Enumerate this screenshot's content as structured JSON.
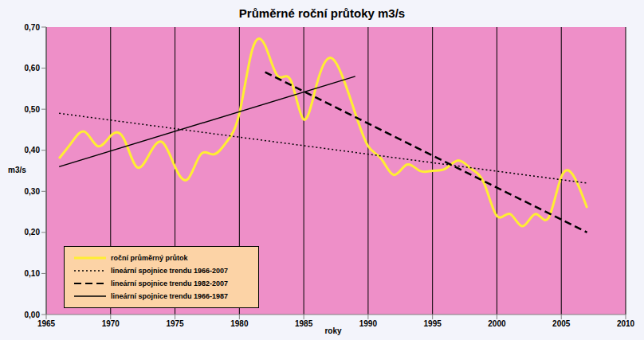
{
  "chart_data": {
    "type": "line",
    "title": "Průměrné roční průtoky m3/s",
    "x_label": "roky",
    "y_label": "m3/s",
    "xlim": [
      1965,
      2010
    ],
    "xticks": [
      1965,
      1970,
      1975,
      1980,
      1985,
      1990,
      1995,
      2000,
      2005,
      2010
    ],
    "ylim": [
      0,
      0.7
    ],
    "yticks": [
      {
        "value": 0,
        "label": "0,00"
      },
      {
        "value": 0.1,
        "label": "0,10"
      },
      {
        "value": 0.2,
        "label": "0,20"
      },
      {
        "value": 0.3,
        "label": "0,30"
      },
      {
        "value": 0.4,
        "label": "0,40"
      },
      {
        "value": 0.5,
        "label": "0,50"
      },
      {
        "value": 0.6,
        "label": "0,60"
      },
      {
        "value": 0.7,
        "label": "0,70"
      }
    ],
    "grid": "x",
    "legend": "lower left",
    "series": [
      {
        "name": "roční průměrný průtok",
        "color": "#ffee33",
        "line_style": "solid",
        "x": [
          1966,
          1967,
          1968,
          1969,
          1970,
          1971,
          1972,
          1973,
          1974,
          1975,
          1976,
          1977,
          1978,
          1979,
          1980,
          1981,
          1982,
          1983,
          1984,
          1985,
          1986,
          1987,
          1988,
          1989,
          1990,
          1991,
          1992,
          1993,
          1994,
          1995,
          1996,
          1997,
          1998,
          1999,
          2000,
          2001,
          2002,
          2003,
          2004,
          2005,
          2006,
          2007
        ],
        "values": [
          0.38,
          0.42,
          0.445,
          0.41,
          0.435,
          0.43,
          0.36,
          0.39,
          0.42,
          0.36,
          0.33,
          0.39,
          0.39,
          0.42,
          0.49,
          0.645,
          0.655,
          0.58,
          0.57,
          0.475,
          0.56,
          0.625,
          0.58,
          0.49,
          0.41,
          0.38,
          0.34,
          0.365,
          0.35,
          0.35,
          0.355,
          0.375,
          0.355,
          0.32,
          0.24,
          0.245,
          0.215,
          0.245,
          0.235,
          0.335,
          0.335,
          0.26
        ]
      },
      {
        "name": "lineární spojnice trendu 1966-2007",
        "color": "#000000",
        "line_style": "dotted",
        "x": [
          1966,
          2007
        ],
        "values": [
          0.49,
          0.32
        ]
      },
      {
        "name": "lineární spojnice trendu 1982-2007",
        "color": "#000000",
        "line_style": "dashed",
        "x": [
          1982,
          2007
        ],
        "values": [
          0.59,
          0.2
        ]
      },
      {
        "name": "lineární spojnice trendu 1966-1987",
        "color": "#000000",
        "line_style": "solid",
        "x": [
          1966,
          1989
        ],
        "values": [
          0.36,
          0.58
        ]
      }
    ]
  }
}
